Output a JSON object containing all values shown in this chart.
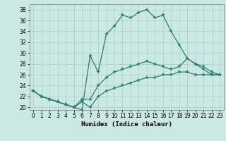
{
  "title": "",
  "xlabel": "Humidex (Indice chaleur)",
  "ylabel": "",
  "bg_color": "#cce8e4",
  "grid_color": "#aad4cc",
  "line_color": "#2d7a6e",
  "xlim": [
    -0.5,
    23.5
  ],
  "ylim": [
    19.5,
    39.0
  ],
  "yticks": [
    20,
    22,
    24,
    26,
    28,
    30,
    32,
    34,
    36,
    38
  ],
  "xticks": [
    0,
    1,
    2,
    3,
    4,
    5,
    6,
    7,
    8,
    9,
    10,
    11,
    12,
    13,
    14,
    15,
    16,
    17,
    18,
    19,
    20,
    21,
    22,
    23
  ],
  "line1_x": [
    0,
    1,
    2,
    3,
    4,
    5,
    6,
    7,
    8,
    9,
    10,
    11,
    12,
    13,
    14,
    15,
    16,
    17,
    18,
    19,
    20,
    21,
    22,
    23
  ],
  "line1_y": [
    23.0,
    22.0,
    21.5,
    21.0,
    20.5,
    20.0,
    19.5,
    29.5,
    26.5,
    33.5,
    35.0,
    37.0,
    36.5,
    37.5,
    38.0,
    36.5,
    37.0,
    34.0,
    31.5,
    29.0,
    28.0,
    27.0,
    26.0,
    26.0
  ],
  "line2_x": [
    0,
    1,
    2,
    3,
    4,
    5,
    6,
    7,
    8,
    9,
    10,
    11,
    12,
    13,
    14,
    15,
    16,
    17,
    18,
    19,
    20,
    21,
    22,
    23
  ],
  "line2_y": [
    23.0,
    22.0,
    21.5,
    21.0,
    20.5,
    20.0,
    21.5,
    21.5,
    24.0,
    25.5,
    26.5,
    27.0,
    27.5,
    28.0,
    28.5,
    28.0,
    27.5,
    27.0,
    27.5,
    29.0,
    28.0,
    27.5,
    26.5,
    26.0
  ],
  "line3_x": [
    0,
    1,
    2,
    3,
    4,
    5,
    6,
    7,
    8,
    9,
    10,
    11,
    12,
    13,
    14,
    15,
    16,
    17,
    18,
    19,
    20,
    21,
    22,
    23
  ],
  "line3_y": [
    23.0,
    22.0,
    21.5,
    21.0,
    20.5,
    20.0,
    21.0,
    20.0,
    22.0,
    23.0,
    23.5,
    24.0,
    24.5,
    25.0,
    25.5,
    25.5,
    26.0,
    26.0,
    26.5,
    26.5,
    26.0,
    26.0,
    26.0,
    26.0
  ],
  "tick_fontsize": 5.5,
  "xlabel_fontsize": 6.5,
  "lw": 0.9,
  "ms": 2.5
}
